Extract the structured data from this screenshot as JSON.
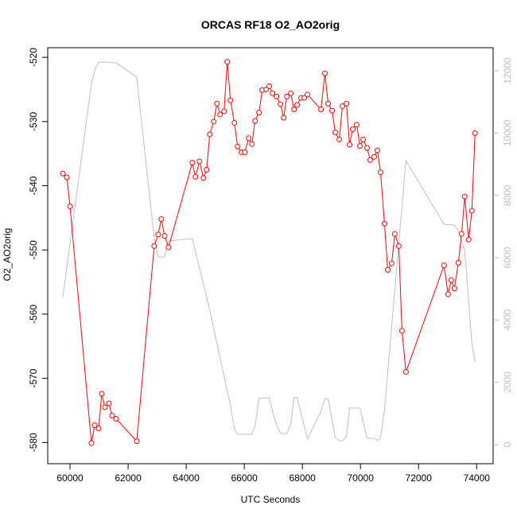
{
  "chart_data": {
    "type": "line",
    "title": "ORCAS RF18 O2_AO2orig",
    "xlabel": "UTC Seconds",
    "ylabel": "O2_AO2orig",
    "xlim": [
      59232,
      74568
    ],
    "xticks": [
      60000,
      62000,
      64000,
      66000,
      68000,
      70000,
      72000,
      74000
    ],
    "ylim": [
      -583.3,
      -518.5
    ],
    "yticks": [
      -580,
      -570,
      -560,
      -550,
      -540,
      -530,
      -520
    ],
    "y2lim": [
      -613,
      12740
    ],
    "y2ticks": [
      0,
      2000,
      4000,
      6000,
      8000,
      10000,
      12000
    ],
    "series": [
      {
        "color": "#bebebe",
        "axis": "y2",
        "marker": "none",
        "x": [
          59754,
          60738,
          60875,
          60984,
          61586,
          62297,
          62898,
          63035,
          63254,
          63391,
          64211,
          64812,
          65524,
          65660,
          65770,
          66262,
          66371,
          66508,
          66863,
          66973,
          67109,
          67246,
          67465,
          67602,
          67711,
          67820,
          68176,
          68641,
          68777,
          68887,
          69133,
          69270,
          69379,
          69516,
          69625,
          69981,
          70090,
          70227,
          70473,
          70582,
          70692,
          70828,
          71566,
          72879,
          73234,
          73371,
          73590,
          73836,
          73945
        ],
        "values": [
          4750,
          11590,
          12075,
          12280,
          12254,
          11795,
          6612,
          6025,
          6025,
          6536,
          6612,
          4315,
          1251,
          485,
          332,
          332,
          613,
          1481,
          1506,
          1072,
          638,
          357,
          357,
          664,
          1506,
          1506,
          179,
          1072,
          1481,
          1481,
          230,
          128,
          128,
          255,
          1174,
          1174,
          740,
          204,
          204,
          128,
          230,
          1123,
          9114,
          7072,
          7046,
          6868,
          6229,
          3242,
          2655
        ]
      },
      {
        "color": "#ff0000",
        "axis": "y",
        "marker": "circle",
        "x": [
          59754,
          59891,
          60000,
          60738,
          60848,
          60984,
          61094,
          61203,
          61340,
          61449,
          61586,
          62297,
          62898,
          63035,
          63144,
          63254,
          63391,
          64211,
          64320,
          64457,
          64594,
          64703,
          64812,
          64949,
          65059,
          65168,
          65305,
          65414,
          65524,
          65660,
          65770,
          65906,
          66016,
          66152,
          66262,
          66371,
          66508,
          66617,
          66754,
          66863,
          66973,
          67109,
          67246,
          67355,
          67465,
          67602,
          67711,
          67820,
          67957,
          68066,
          68176,
          68641,
          68777,
          68887,
          69023,
          69133,
          69270,
          69379,
          69516,
          69625,
          69734,
          69871,
          69981,
          70090,
          70227,
          70336,
          70473,
          70582,
          70692,
          70828,
          70938,
          71074,
          71184,
          71320,
          71430,
          71566,
          72879,
          73016,
          73125,
          73234,
          73371,
          73481,
          73590,
          73727,
          73836,
          73945
        ],
        "values": [
          -538.1,
          -538.7,
          -543.2,
          -580.1,
          -577.3,
          -577.8,
          -572.4,
          -574.5,
          -573.9,
          -575.8,
          -576.3,
          -579.8,
          -549.4,
          -547.6,
          -545.2,
          -547.8,
          -549.6,
          -536.4,
          -538.6,
          -536.2,
          -538.8,
          -537.5,
          -532.0,
          -530.0,
          -527.2,
          -528.9,
          -528.4,
          -520.7,
          -526.7,
          -530.2,
          -533.9,
          -534.8,
          -534.8,
          -532.6,
          -533.5,
          -529.9,
          -528.6,
          -525.1,
          -525.0,
          -524.5,
          -525.6,
          -526.1,
          -527.3,
          -529.4,
          -526.1,
          -525.6,
          -528.1,
          -527.4,
          -526.3,
          -526.3,
          -525.8,
          -528.1,
          -522.5,
          -527.2,
          -528.3,
          -531.7,
          -532.8,
          -527.6,
          -527.2,
          -533.6,
          -531.2,
          -530.5,
          -533.8,
          -532.8,
          -534.1,
          -536.0,
          -535.5,
          -534.5,
          -537.9,
          -545.9,
          -553.1,
          -552.1,
          -547.5,
          -549.4,
          -562.6,
          -569.0,
          -552.4,
          -556.9,
          -554.7,
          -556.0,
          -552.0,
          -547.5,
          -541.7,
          -548.4,
          -543.9,
          -531.8
        ]
      }
    ]
  }
}
